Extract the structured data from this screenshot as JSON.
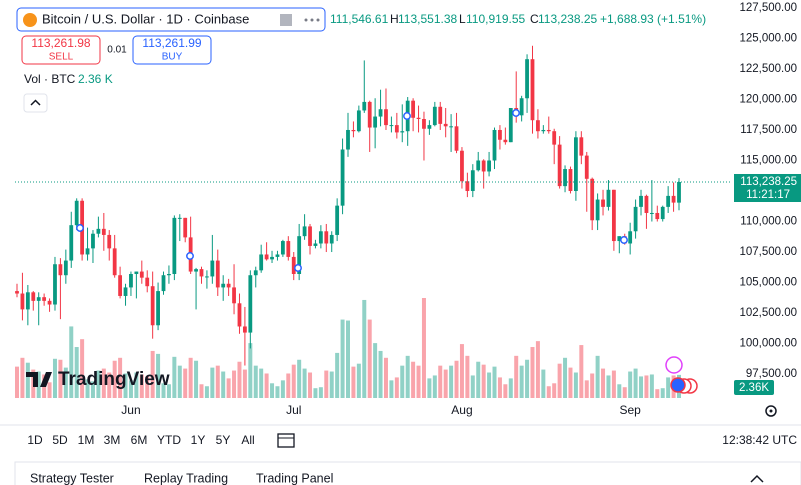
{
  "header": {
    "symbol": "Bitcoin / U.S. Dollar · 1D · Coinbase",
    "ohlc": {
      "open": "111,546.61",
      "high_key": "H",
      "high": "113,551.38",
      "low_key": "L",
      "low": "110,919.55",
      "close_key": "C",
      "close": "113,238.25",
      "change": "+1,688.93 (+1.51%)"
    }
  },
  "trade": {
    "sell_price": "113,261.98",
    "sell": "SELL",
    "spread": "0.01",
    "buy_price": "113,261.99",
    "buy": "BUY"
  },
  "volume_legend": {
    "label": "Vol · BTC",
    "value": "2.36 K"
  },
  "chart_data": {
    "type": "candlestick",
    "up_color": "#089981",
    "down_color": "#f23645",
    "grid": false,
    "ylim": [
      95540,
      128150
    ],
    "yticks": [
      {
        "value": 97500,
        "label": "97,500.00"
      },
      {
        "value": 100000,
        "label": "100,000.00"
      },
      {
        "value": 102500,
        "label": "102,500.00"
      },
      {
        "value": 105000,
        "label": "105,000.00"
      },
      {
        "value": 107500,
        "label": "107,500.00"
      },
      {
        "value": 110000,
        "label": "110,000.00"
      },
      {
        "value": 112500,
        "label": "112,500.00"
      },
      {
        "value": 115000,
        "label": "115,000.00"
      },
      {
        "value": 117500,
        "label": "117,500.00"
      },
      {
        "value": 120000,
        "label": "120,000.00"
      },
      {
        "value": 122500,
        "label": "122,500.00"
      },
      {
        "value": 125000,
        "label": "125,000.00"
      },
      {
        "value": 127500,
        "label": "127,500.00"
      }
    ],
    "last_price_label": "113,238.25",
    "countdown": "11:21:17",
    "volume_label": "2.36K",
    "watermark": "TradingView",
    "categories": [
      null,
      null,
      null,
      null,
      null,
      null,
      null,
      null,
      null,
      null,
      null,
      null,
      null,
      null,
      null,
      null,
      null,
      null,
      null,
      null,
      null,
      "Jun",
      null,
      null,
      null,
      null,
      null,
      null,
      null,
      null,
      null,
      null,
      null,
      null,
      null,
      null,
      null,
      null,
      null,
      null,
      null,
      null,
      null,
      null,
      null,
      null,
      null,
      null,
      null,
      null,
      null,
      "Jul",
      null,
      null,
      null,
      null,
      null,
      null,
      null,
      null,
      null,
      null,
      null,
      null,
      null,
      null,
      null,
      null,
      null,
      null,
      null,
      null,
      null,
      null,
      null,
      null,
      null,
      null,
      null,
      null,
      null,
      null,
      "Aug",
      null,
      null,
      null,
      null,
      null,
      null,
      null,
      null,
      null,
      null,
      null,
      null,
      null,
      null,
      null,
      null,
      null,
      null,
      null,
      null,
      null,
      null,
      null,
      null,
      null,
      null,
      null,
      null,
      null,
      null,
      "Sep",
      null,
      null,
      null,
      null,
      null,
      null,
      null,
      null,
      null
    ],
    "candles": [
      [
        104300,
        104900,
        103800,
        104100
      ],
      [
        104100,
        105800,
        101900,
        102800
      ],
      [
        102800,
        104800,
        101500,
        104200
      ],
      [
        104200,
        104300,
        102700,
        103500
      ],
      [
        103500,
        104200,
        101500,
        103800
      ],
      [
        103800,
        104100,
        103100,
        103500
      ],
      [
        103500,
        103700,
        102600,
        103200
      ],
      [
        103200,
        107100,
        102700,
        106500
      ],
      [
        106500,
        107000,
        102000,
        105600
      ],
      [
        105600,
        107700,
        104900,
        106800
      ],
      [
        106800,
        110800,
        106200,
        109700
      ],
      [
        109700,
        111900,
        109300,
        111700
      ],
      [
        111700,
        111900,
        106800,
        107300
      ],
      [
        107300,
        109500,
        106800,
        107800
      ],
      [
        107800,
        109300,
        106600,
        109000
      ],
      [
        109000,
        110400,
        108700,
        109400
      ],
      [
        109400,
        110700,
        107600,
        108900
      ],
      [
        108900,
        109300,
        106800,
        107800
      ],
      [
        107800,
        108900,
        105400,
        105600
      ],
      [
        105600,
        106300,
        103700,
        103900
      ],
      [
        103900,
        104900,
        103100,
        104600
      ],
      [
        104600,
        105900,
        103900,
        105700
      ],
      [
        105700,
        105900,
        103700,
        105900
      ],
      [
        105900,
        106800,
        104900,
        105400
      ],
      [
        105400,
        106000,
        104200,
        104700
      ],
      [
        104700,
        105900,
        100400,
        101500
      ],
      [
        101500,
        105000,
        101100,
        104300
      ],
      [
        104300,
        105900,
        104000,
        105600
      ],
      [
        105600,
        106400,
        104900,
        105700
      ],
      [
        105700,
        110500,
        105200,
        110300
      ],
      [
        110300,
        110600,
        108400,
        110300
      ],
      [
        110300,
        110300,
        108300,
        108700
      ],
      [
        108700,
        110400,
        105700,
        105900
      ],
      [
        105900,
        106200,
        102800,
        106100
      ],
      [
        106100,
        106300,
        104900,
        105500
      ],
      [
        105500,
        106000,
        104500,
        105500
      ],
      [
        105500,
        108900,
        104900,
        106800
      ],
      [
        106800,
        107700,
        103900,
        104600
      ],
      [
        104600,
        105600,
        103500,
        104900
      ],
      [
        104900,
        105300,
        103900,
        104600
      ],
      [
        104600,
        106500,
        102400,
        103300
      ],
      [
        103300,
        104100,
        100800,
        101400
      ],
      [
        101400,
        103000,
        98200,
        100900
      ],
      [
        100900,
        106000,
        99600,
        105600
      ],
      [
        105600,
        106300,
        104600,
        106000
      ],
      [
        106000,
        108100,
        105800,
        107300
      ],
      [
        107300,
        108300,
        106800,
        106900
      ],
      [
        106900,
        107600,
        106600,
        107100
      ],
      [
        107100,
        107600,
        106800,
        107300
      ],
      [
        107300,
        108500,
        107100,
        108400
      ],
      [
        108400,
        108800,
        106800,
        107100
      ],
      [
        107100,
        107500,
        105200,
        105700
      ],
      [
        105700,
        109800,
        105200,
        108800
      ],
      [
        108800,
        110600,
        108500,
        109600
      ],
      [
        109600,
        109800,
        107300,
        108000
      ],
      [
        108000,
        108500,
        107800,
        108200
      ],
      [
        108200,
        109700,
        107800,
        109200
      ],
      [
        109200,
        109800,
        107500,
        108200
      ],
      [
        108200,
        109200,
        107500,
        108900
      ],
      [
        108900,
        111900,
        108400,
        111300
      ],
      [
        111300,
        116800,
        110600,
        115900
      ],
      [
        115900,
        118900,
        115300,
        117500
      ],
      [
        117500,
        118200,
        116900,
        117400
      ],
      [
        117400,
        119500,
        117300,
        119100
      ],
      [
        119100,
        123200,
        118900,
        119800
      ],
      [
        119800,
        119900,
        115700,
        117700
      ],
      [
        117700,
        120100,
        116000,
        118600
      ],
      [
        118600,
        120800,
        117800,
        119200
      ],
      [
        119200,
        120900,
        117500,
        117900
      ],
      [
        117900,
        118600,
        117300,
        117900
      ],
      [
        117900,
        118900,
        116800,
        117300
      ],
      [
        117300,
        119600,
        116500,
        117400
      ],
      [
        117400,
        120200,
        116200,
        119900
      ],
      [
        119900,
        120100,
        117400,
        118500
      ],
      [
        118500,
        119500,
        117300,
        118400
      ],
      [
        118400,
        119000,
        115000,
        117600
      ],
      [
        117600,
        118300,
        117100,
        117900
      ],
      [
        117900,
        119800,
        117800,
        119400
      ],
      [
        119400,
        119800,
        117500,
        118000
      ],
      [
        118000,
        119300,
        116900,
        117800
      ],
      [
        117800,
        118800,
        115700,
        117800
      ],
      [
        117800,
        118900,
        115600,
        115800
      ],
      [
        115800,
        116100,
        112700,
        113300
      ],
      [
        113300,
        114000,
        112000,
        112500
      ],
      [
        112500,
        114700,
        112000,
        114200
      ],
      [
        114200,
        115700,
        114100,
        115000
      ],
      [
        115000,
        115100,
        112700,
        114100
      ],
      [
        114100,
        115700,
        113700,
        115000
      ],
      [
        115000,
        117700,
        114300,
        117500
      ],
      [
        117500,
        117900,
        115900,
        116700
      ],
      [
        116700,
        117700,
        116300,
        116500
      ],
      [
        116500,
        119300,
        116500,
        119300
      ],
      [
        119300,
        122300,
        118100,
        118700
      ],
      [
        118700,
        120300,
        118200,
        120100
      ],
      [
        120100,
        123700,
        118900,
        123300
      ],
      [
        123300,
        124400,
        117200,
        118300
      ],
      [
        118300,
        119200,
        116800,
        117400
      ],
      [
        117400,
        117900,
        117200,
        117500
      ],
      [
        117500,
        118600,
        117200,
        117400
      ],
      [
        117400,
        117600,
        114700,
        116300
      ],
      [
        116300,
        117000,
        112700,
        112900
      ],
      [
        112900,
        114600,
        112400,
        114300
      ],
      [
        114300,
        114500,
        112300,
        112500
      ],
      [
        112500,
        117400,
        111700,
        116900
      ],
      [
        116900,
        117400,
        114700,
        115400
      ],
      [
        115400,
        115700,
        110800,
        113500
      ],
      [
        113500,
        113600,
        109300,
        110100
      ],
      [
        110100,
        112300,
        109300,
        111800
      ],
      [
        111800,
        112600,
        110500,
        111200
      ],
      [
        111200,
        113400,
        110900,
        112600
      ],
      [
        112600,
        112600,
        107600,
        108400
      ],
      [
        108400,
        108800,
        107400,
        108800
      ],
      [
        108800,
        109000,
        108100,
        108200
      ],
      [
        108200,
        109900,
        107300,
        109200
      ],
      [
        109200,
        111800,
        108600,
        111200
      ],
      [
        111200,
        112600,
        110500,
        112100
      ],
      [
        112100,
        112200,
        109400,
        110700
      ],
      [
        110700,
        113400,
        110000,
        110700
      ],
      [
        110700,
        111300,
        110000,
        110200
      ],
      [
        110200,
        111300,
        110000,
        111200
      ],
      [
        111200,
        112900,
        110700,
        112100
      ],
      [
        112100,
        113200,
        110800,
        111549.32
      ],
      [
        111546.61,
        113551.38,
        110919.55,
        113238.25
      ]
    ],
    "volumes": [
      3200,
      4100,
      3600,
      2900,
      2700,
      2400,
      1600,
      4000,
      3900,
      3100,
      7300,
      5200,
      6000,
      1900,
      1700,
      2800,
      3000,
      2600,
      3800,
      4100,
      2500,
      1800,
      2600,
      2400,
      2200,
      4800,
      4500,
      1500,
      1400,
      4200,
      3300,
      3000,
      4100,
      3800,
      1400,
      1200,
      3100,
      3300,
      2700,
      2000,
      2800,
      3700,
      2900,
      5600,
      3300,
      3000,
      2500,
      1500,
      1200,
      1800,
      2500,
      3400,
      3900,
      3000,
      2600,
      1000,
      1100,
      2800,
      2700,
      4600,
      8000,
      7900,
      3200,
      3500,
      10000,
      8000,
      5600,
      4800,
      4100,
      1800,
      2100,
      3300,
      4300,
      3700,
      3300,
      10200,
      2000,
      2300,
      3300,
      2900,
      3300,
      3800,
      5500,
      4300,
      2300,
      3700,
      3400,
      2600,
      3200,
      2100,
      1400,
      2000,
      4300,
      3300,
      3900,
      5200,
      5800,
      2900,
      1200,
      1500,
      3500,
      4100,
      3100,
      2600,
      5400,
      1800,
      2500,
      4300,
      3000,
      2300,
      2800,
      1400,
      1100,
      2700,
      3000,
      2200,
      2300,
      2400,
      900,
      1000,
      2100,
      2300,
      2360
    ]
  },
  "timeframes": [
    "1D",
    "5D",
    "1M",
    "3M",
    "6M",
    "YTD",
    "1Y",
    "5Y",
    "All"
  ],
  "clock": "12:38:42 UTC",
  "tabs": [
    "Strategy Tester",
    "Replay Trading",
    "Trading Panel"
  ]
}
